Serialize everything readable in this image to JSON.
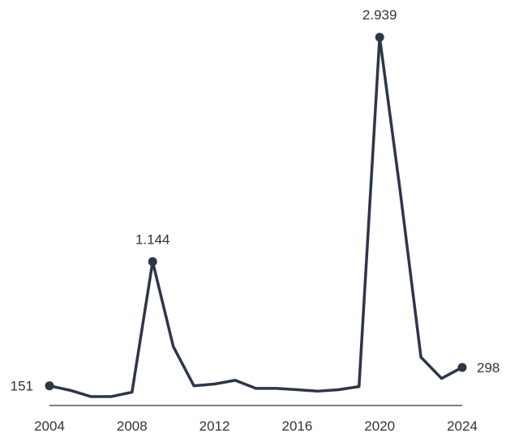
{
  "chart_data": {
    "type": "line",
    "title": "",
    "xlabel": "",
    "ylabel": "",
    "x": [
      2004,
      2005,
      2006,
      2007,
      2008,
      2009,
      2010,
      2011,
      2012,
      2013,
      2014,
      2015,
      2016,
      2017,
      2018,
      2019,
      2020,
      2021,
      2022,
      2023,
      2024
    ],
    "series": [
      {
        "values": [
          151,
          115,
          65,
          65,
          100,
          1144,
          465,
          151,
          165,
          195,
          130,
          130,
          120,
          108,
          120,
          145,
          2939,
          1700,
          380,
          210,
          298
        ]
      }
    ],
    "xlim": [
      2004,
      2024
    ],
    "ylim": [
      0,
      3000
    ],
    "x_ticks": [
      "2004",
      "2008",
      "2012",
      "2016",
      "2020",
      "2024"
    ],
    "highlighted_labels": [
      {
        "x": 2004,
        "value": 151,
        "text": "151",
        "position": "left"
      },
      {
        "x": 2009,
        "value": 1144,
        "text": "1.144",
        "position": "above"
      },
      {
        "x": 2020,
        "value": 2939,
        "text": "2.939",
        "position": "above"
      },
      {
        "x": 2024,
        "value": 298,
        "text": "298",
        "position": "right"
      }
    ],
    "grid": false,
    "line_color": "#2d3648",
    "axis_color": "#333333"
  }
}
